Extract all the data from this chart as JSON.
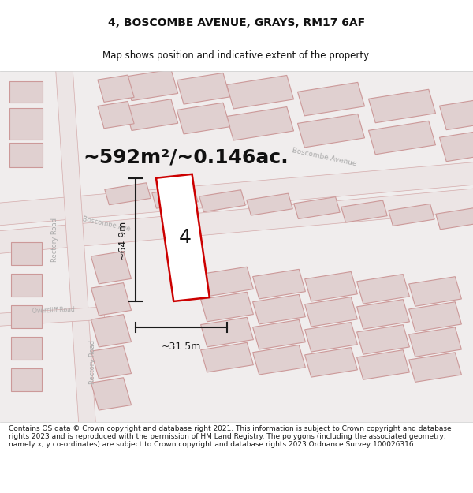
{
  "title": "4, BOSCOMBE AVENUE, GRAYS, RM17 6AF",
  "subtitle": "Map shows position and indicative extent of the property.",
  "area_text": "~592m²/~0.146ac.",
  "dim_width": "~31.5m",
  "dim_height": "~64.9m",
  "plot_number": "4",
  "footer": "Contains OS data © Crown copyright and database right 2021. This information is subject to Crown copyright and database rights 2023 and is reproduced with the permission of HM Land Registry. The polygons (including the associated geometry, namely x, y co-ordinates) are subject to Crown copyright and database rights 2023 Ordnance Survey 100026316.",
  "map_bg": "#f0eded",
  "road_fill": "#ece5e5",
  "road_edge": "#d4aaaa",
  "bldg_fill": "#e0d0d0",
  "bldg_edge": "#cc9999",
  "plot_color": "#cc0000",
  "dim_color": "#1a1a1a",
  "title_color": "#111111",
  "road_label_color": "#aaaaaa",
  "title_size": 10,
  "subtitle_size": 8.5,
  "footer_size": 6.5,
  "area_text_size": 18,
  "dim_text_size": 9,
  "plot_num_size": 18
}
